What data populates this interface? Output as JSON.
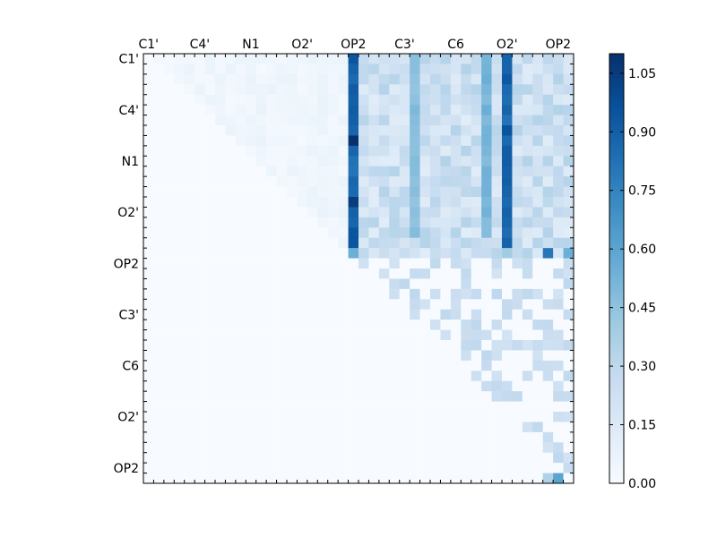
{
  "chart_data": {
    "type": "heatmap",
    "colormap": "Blues",
    "vmin": 0.0,
    "vmax": 1.1,
    "n": 42,
    "x_tick_labels": [
      "C1'",
      "C4'",
      "N1",
      "O2'",
      "OP2",
      "C3'",
      "C6",
      "O2'",
      "OP2"
    ],
    "y_tick_labels": [
      "C1'",
      "C4'",
      "N1",
      "O2'",
      "OP2",
      "C3'",
      "C6",
      "O2'",
      "OP2"
    ],
    "tick_positions": [
      0.5,
      5.5,
      10.5,
      15.5,
      20.5,
      25.5,
      30.5,
      35.5,
      40.5
    ],
    "colorbar_ticks": [
      "0.00",
      "0.15",
      "0.30",
      "0.45",
      "0.60",
      "0.75",
      "0.90",
      "1.05"
    ],
    "colorbar_tick_values": [
      0.0,
      0.15,
      0.3,
      0.45,
      0.6,
      0.75,
      0.9,
      1.05
    ],
    "grid": false,
    "legend": "colorbar-right",
    "matrix_shape": "upper-triangular",
    "strong_columns": [
      {
        "col": 20,
        "rows": [
          0,
          19
        ],
        "value": 0.95
      },
      {
        "col": 35,
        "rows": [
          0,
          19
        ],
        "value": 0.95
      },
      {
        "col": 33,
        "rows": [
          0,
          17
        ],
        "value": 0.55
      },
      {
        "col": 26,
        "rows": [
          0,
          17
        ],
        "value": 0.5
      }
    ],
    "peak_cells": [
      {
        "row": 8,
        "col": 20,
        "value": 1.1
      },
      {
        "row": 14,
        "col": 20,
        "value": 1.05
      },
      {
        "row": 19,
        "col": 20,
        "value": 0.55
      },
      {
        "row": 19,
        "col": 35,
        "value": 0.4
      },
      {
        "row": 19,
        "col": 41,
        "value": 0.55
      },
      {
        "row": 19,
        "col": 39,
        "value": 0.8
      },
      {
        "row": 41,
        "col": 40,
        "value": 0.6
      },
      {
        "row": 41,
        "col": 39,
        "value": 0.35
      }
    ]
  }
}
